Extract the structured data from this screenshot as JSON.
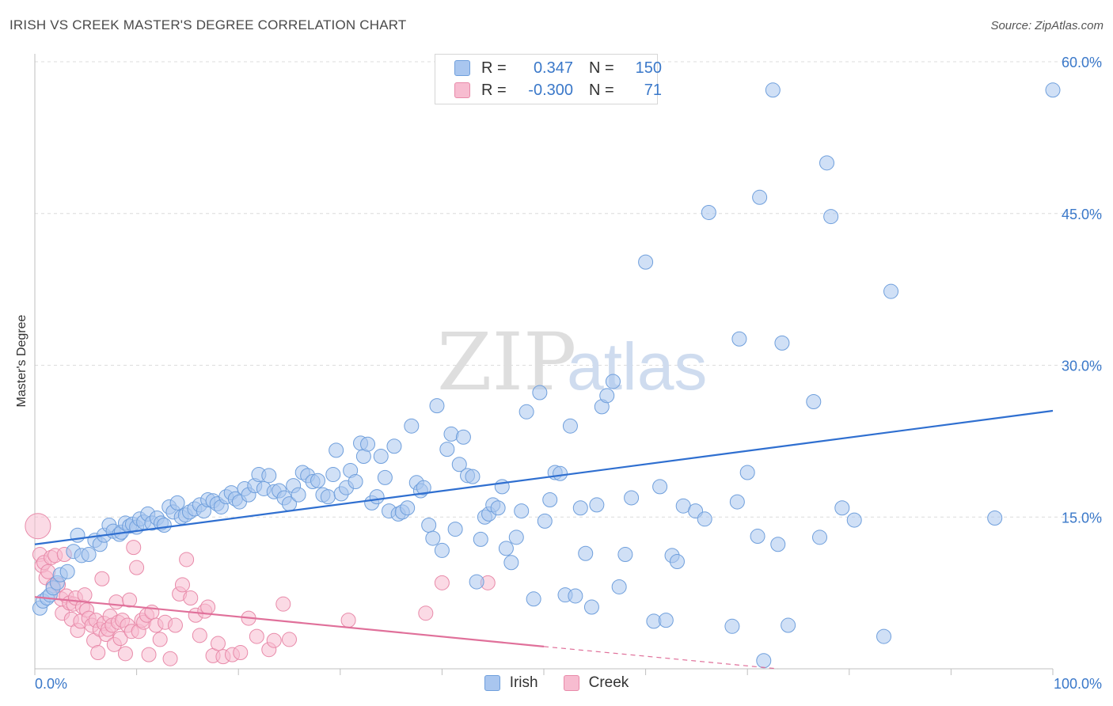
{
  "header": {
    "title": "IRISH VS CREEK MASTER'S DEGREE CORRELATION CHART",
    "source": "Source: ZipAtlas.com"
  },
  "watermark": {
    "zip": "ZIP",
    "atlas": "atlas"
  },
  "legend": {
    "rows": [
      {
        "r_label": "R =",
        "r_value": "0.347",
        "n_label": "N =",
        "n_value": "150",
        "color": "#a9c6ef",
        "border": "#6f9fdc"
      },
      {
        "r_label": "R =",
        "r_value": "-0.300",
        "n_label": "N =",
        "n_value": "71",
        "color": "#f7bcd0",
        "border": "#e88aa9"
      }
    ]
  },
  "bottom_legend": {
    "items": [
      {
        "label": "Irish"
      },
      {
        "label": "Creek"
      }
    ]
  },
  "colors": {
    "irish_fill": "#a9c6ef",
    "irish_stroke": "#6f9fdc",
    "irish_line": "#2f6fd0",
    "creek_fill": "#f7bcd0",
    "creek_stroke": "#e88aa9",
    "creek_line": "#e0709a",
    "tick_label": "#3a78c9",
    "grid": "#dcdcdc"
  },
  "chart_data": {
    "type": "scatter",
    "title": "IRISH VS CREEK MASTER'S DEGREE CORRELATION CHART",
    "xlabel": "",
    "ylabel": "Master's Degree",
    "xlim": [
      0,
      100
    ],
    "ylim": [
      0,
      60
    ],
    "x_tick_labels": [
      {
        "value": 0,
        "label": "0.0%"
      },
      {
        "value": 100,
        "label": "100.0%"
      }
    ],
    "y_tick_labels": [
      {
        "value": 15,
        "label": "15.0%"
      },
      {
        "value": 30,
        "label": "30.0%"
      },
      {
        "value": 45,
        "label": "45.0%"
      },
      {
        "value": 60,
        "label": "60.0%"
      }
    ],
    "grid": "horizontal dashed",
    "legend_position": "top-center",
    "series": [
      {
        "name": "Irish",
        "r": 0.347,
        "n": 150,
        "trend": {
          "x0": 0,
          "y0": 12.3,
          "x1": 100,
          "y1": 25.5
        },
        "points": [
          [
            0.5,
            6.0
          ],
          [
            0.8,
            6.7
          ],
          [
            1.2,
            7.0
          ],
          [
            1.5,
            7.3
          ],
          [
            1.8,
            8.0
          ],
          [
            2.2,
            8.5
          ],
          [
            2.5,
            9.3
          ],
          [
            3.2,
            9.6
          ],
          [
            3.8,
            11.6
          ],
          [
            4.2,
            13.2
          ],
          [
            4.6,
            11.2
          ],
          [
            5.3,
            11.3
          ],
          [
            5.9,
            12.7
          ],
          [
            6.4,
            12.3
          ],
          [
            6.8,
            13.2
          ],
          [
            7.3,
            14.2
          ],
          [
            7.7,
            13.6
          ],
          [
            8.3,
            13.3
          ],
          [
            8.5,
            13.5
          ],
          [
            8.9,
            14.4
          ],
          [
            9.3,
            14.1
          ],
          [
            9.6,
            14.3
          ],
          [
            10.0,
            14.0
          ],
          [
            10.3,
            14.8
          ],
          [
            10.7,
            14.5
          ],
          [
            11.1,
            15.3
          ],
          [
            11.5,
            14.4
          ],
          [
            12.0,
            14.9
          ],
          [
            12.4,
            14.4
          ],
          [
            12.7,
            14.2
          ],
          [
            13.2,
            16.0
          ],
          [
            13.6,
            15.5
          ],
          [
            14.0,
            16.4
          ],
          [
            14.4,
            15.0
          ],
          [
            14.8,
            15.2
          ],
          [
            15.2,
            15.5
          ],
          [
            15.7,
            15.8
          ],
          [
            16.2,
            16.2
          ],
          [
            16.6,
            15.6
          ],
          [
            17.0,
            16.7
          ],
          [
            17.5,
            16.6
          ],
          [
            17.9,
            16.3
          ],
          [
            18.3,
            16.0
          ],
          [
            18.8,
            17.0
          ],
          [
            19.3,
            17.4
          ],
          [
            19.7,
            16.8
          ],
          [
            20.1,
            16.5
          ],
          [
            20.6,
            17.8
          ],
          [
            21.0,
            17.2
          ],
          [
            21.6,
            18.1
          ],
          [
            22.0,
            19.2
          ],
          [
            22.5,
            17.8
          ],
          [
            23.0,
            19.1
          ],
          [
            23.5,
            17.5
          ],
          [
            24.0,
            17.6
          ],
          [
            24.5,
            16.9
          ],
          [
            25.0,
            16.3
          ],
          [
            25.4,
            18.1
          ],
          [
            25.9,
            17.2
          ],
          [
            26.3,
            19.4
          ],
          [
            26.8,
            19.1
          ],
          [
            27.3,
            18.5
          ],
          [
            27.8,
            18.6
          ],
          [
            28.3,
            17.2
          ],
          [
            28.8,
            17.0
          ],
          [
            29.3,
            19.2
          ],
          [
            29.6,
            21.6
          ],
          [
            30.1,
            17.3
          ],
          [
            30.6,
            17.9
          ],
          [
            31.0,
            19.6
          ],
          [
            31.5,
            18.5
          ],
          [
            32.0,
            22.3
          ],
          [
            32.3,
            21.0
          ],
          [
            32.7,
            22.2
          ],
          [
            33.1,
            16.4
          ],
          [
            33.6,
            17.0
          ],
          [
            34.0,
            21.0
          ],
          [
            34.4,
            18.9
          ],
          [
            34.8,
            15.6
          ],
          [
            35.3,
            22.0
          ],
          [
            35.7,
            15.3
          ],
          [
            36.1,
            15.5
          ],
          [
            36.6,
            15.9
          ],
          [
            37.0,
            24.0
          ],
          [
            37.5,
            18.4
          ],
          [
            37.9,
            17.6
          ],
          [
            38.2,
            17.9
          ],
          [
            38.7,
            14.2
          ],
          [
            39.1,
            12.9
          ],
          [
            39.5,
            26.0
          ],
          [
            40.0,
            11.7
          ],
          [
            40.5,
            21.7
          ],
          [
            40.9,
            23.2
          ],
          [
            41.3,
            13.8
          ],
          [
            41.7,
            20.2
          ],
          [
            42.1,
            22.9
          ],
          [
            42.5,
            19.1
          ],
          [
            43.0,
            19.0
          ],
          [
            43.4,
            8.6
          ],
          [
            43.8,
            12.8
          ],
          [
            44.2,
            15.0
          ],
          [
            44.6,
            15.3
          ],
          [
            45.0,
            16.2
          ],
          [
            45.5,
            15.9
          ],
          [
            45.9,
            18.0
          ],
          [
            46.3,
            11.9
          ],
          [
            46.8,
            10.5
          ],
          [
            47.3,
            13.0
          ],
          [
            47.8,
            15.6
          ],
          [
            48.3,
            25.4
          ],
          [
            49.0,
            6.9
          ],
          [
            49.6,
            27.3
          ],
          [
            50.1,
            14.6
          ],
          [
            50.6,
            16.7
          ],
          [
            51.1,
            19.4
          ],
          [
            51.6,
            19.3
          ],
          [
            52.1,
            7.3
          ],
          [
            52.6,
            24.0
          ],
          [
            53.1,
            7.2
          ],
          [
            53.6,
            15.9
          ],
          [
            54.1,
            11.4
          ],
          [
            54.7,
            6.1
          ],
          [
            55.2,
            16.2
          ],
          [
            55.7,
            25.9
          ],
          [
            56.2,
            27.0
          ],
          [
            56.8,
            28.4
          ],
          [
            57.4,
            8.1
          ],
          [
            58.0,
            11.3
          ],
          [
            58.6,
            16.9
          ],
          [
            60.0,
            40.2
          ],
          [
            60.8,
            4.7
          ],
          [
            61.4,
            18.0
          ],
          [
            62.0,
            4.8
          ],
          [
            62.6,
            11.2
          ],
          [
            63.1,
            10.6
          ],
          [
            63.7,
            16.1
          ],
          [
            64.9,
            15.6
          ],
          [
            65.8,
            14.8
          ],
          [
            66.2,
            45.1
          ],
          [
            68.5,
            4.2
          ],
          [
            69.0,
            16.5
          ],
          [
            69.2,
            32.6
          ],
          [
            70.0,
            19.4
          ],
          [
            71.0,
            13.1
          ],
          [
            71.2,
            46.6
          ],
          [
            71.6,
            0.8
          ],
          [
            72.5,
            57.2
          ],
          [
            73.0,
            12.3
          ],
          [
            73.4,
            32.2
          ],
          [
            74.0,
            4.3
          ],
          [
            76.5,
            26.4
          ],
          [
            77.1,
            13.0
          ],
          [
            77.8,
            50.0
          ],
          [
            78.2,
            44.7
          ],
          [
            79.3,
            15.9
          ],
          [
            80.5,
            14.7
          ],
          [
            83.4,
            3.2
          ],
          [
            84.1,
            37.3
          ],
          [
            94.3,
            14.9
          ],
          [
            100.0,
            57.2
          ]
        ]
      },
      {
        "name": "Creek",
        "r": -0.3,
        "n": 71,
        "trend": {
          "x0": 0,
          "y0": 7.1,
          "x1": 50,
          "y1": 2.2
        },
        "trend_dashed_extension": {
          "x0": 50,
          "y0": 2.2,
          "x1": 73,
          "y1": 0.0
        },
        "points": [
          [
            0.3,
            14.1
          ],
          [
            0.5,
            11.3
          ],
          [
            0.7,
            10.2
          ],
          [
            0.9,
            10.5
          ],
          [
            1.1,
            9.0
          ],
          [
            1.3,
            9.6
          ],
          [
            1.6,
            11.0
          ],
          [
            1.8,
            8.2
          ],
          [
            2.0,
            11.2
          ],
          [
            2.3,
            8.3
          ],
          [
            2.6,
            6.9
          ],
          [
            2.7,
            5.5
          ],
          [
            2.9,
            11.3
          ],
          [
            3.1,
            7.2
          ],
          [
            3.4,
            6.5
          ],
          [
            3.6,
            4.9
          ],
          [
            3.8,
            6.4
          ],
          [
            4.0,
            7.0
          ],
          [
            4.2,
            3.8
          ],
          [
            4.5,
            4.7
          ],
          [
            4.7,
            6.1
          ],
          [
            4.9,
            7.3
          ],
          [
            5.1,
            5.8
          ],
          [
            5.3,
            5.0
          ],
          [
            5.6,
            4.3
          ],
          [
            5.8,
            2.8
          ],
          [
            6.0,
            4.8
          ],
          [
            6.2,
            1.6
          ],
          [
            6.4,
            3.9
          ],
          [
            6.6,
            8.9
          ],
          [
            6.8,
            4.5
          ],
          [
            7.0,
            3.4
          ],
          [
            7.2,
            3.9
          ],
          [
            7.4,
            5.2
          ],
          [
            7.6,
            4.3
          ],
          [
            7.8,
            2.4
          ],
          [
            8.0,
            6.6
          ],
          [
            8.2,
            4.6
          ],
          [
            8.4,
            3.0
          ],
          [
            8.6,
            4.8
          ],
          [
            8.9,
            1.5
          ],
          [
            9.1,
            4.3
          ],
          [
            9.3,
            6.8
          ],
          [
            9.5,
            3.7
          ],
          [
            9.7,
            12.0
          ],
          [
            10.0,
            10.0
          ],
          [
            10.2,
            3.7
          ],
          [
            10.5,
            4.8
          ],
          [
            10.7,
            4.6
          ],
          [
            11.0,
            5.3
          ],
          [
            11.2,
            1.4
          ],
          [
            11.5,
            5.6
          ],
          [
            11.9,
            4.3
          ],
          [
            12.3,
            2.9
          ],
          [
            12.8,
            4.6
          ],
          [
            13.3,
            1.0
          ],
          [
            13.8,
            4.3
          ],
          [
            14.2,
            7.4
          ],
          [
            14.5,
            8.3
          ],
          [
            14.9,
            10.8
          ],
          [
            15.3,
            7.0
          ],
          [
            15.8,
            5.3
          ],
          [
            16.2,
            3.3
          ],
          [
            16.7,
            5.7
          ],
          [
            17.0,
            6.1
          ],
          [
            17.5,
            1.3
          ],
          [
            18.0,
            2.5
          ],
          [
            18.5,
            1.2
          ],
          [
            19.4,
            1.4
          ],
          [
            20.2,
            1.6
          ],
          [
            21.0,
            5.0
          ],
          [
            21.8,
            3.2
          ],
          [
            23.0,
            1.9
          ],
          [
            23.5,
            2.8
          ],
          [
            24.4,
            6.4
          ],
          [
            25.0,
            2.9
          ],
          [
            30.8,
            4.8
          ],
          [
            38.4,
            5.5
          ],
          [
            40.0,
            8.5
          ],
          [
            44.5,
            8.5
          ]
        ]
      }
    ]
  }
}
